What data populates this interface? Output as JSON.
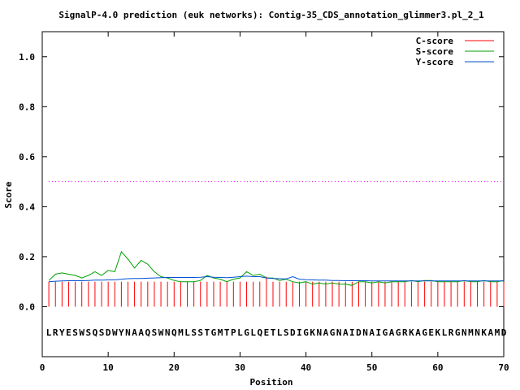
{
  "chart_data": {
    "type": "line",
    "title": "SignalP-4.0 prediction (euk networks): Contig-35_CDS_annotation_glimmer3.pl_2_1",
    "xlabel": "Position",
    "ylabel": "Score",
    "xlim": [
      0,
      70
    ],
    "ylim": [
      -0.2,
      1.1
    ],
    "xticks": [
      0,
      10,
      20,
      30,
      40,
      50,
      60,
      70
    ],
    "yticks": [
      0.0,
      0.2,
      0.4,
      0.6,
      0.8,
      1.0
    ],
    "ytick_labels": [
      "0.0",
      "0.2",
      "0.4",
      "0.6",
      "0.8",
      "1.0"
    ],
    "legend_position": "top-right",
    "threshold": {
      "value": 0.5,
      "color": "#ff00ff",
      "style": "dotted"
    },
    "sequence": "LRYESWSQSDWYNAAQSWNQMLSSTGMTPLGLQETLSDIGKNAGNAIDNAIGAGRKAGEKLRGNMNKAMD",
    "series": [
      {
        "name": "C-score",
        "color": "#ff0000",
        "style": "impulses",
        "values": [
          0.1,
          0.1,
          0.1,
          0.1,
          0.1,
          0.1,
          0.1,
          0.1,
          0.1,
          0.1,
          0.1,
          0.1,
          0.1,
          0.1,
          0.1,
          0.1,
          0.1,
          0.1,
          0.1,
          0.1,
          0.1,
          0.1,
          0.1,
          0.1,
          0.1,
          0.1,
          0.1,
          0.1,
          0.1,
          0.1,
          0.1,
          0.1,
          0.1,
          0.12,
          0.1,
          0.1,
          0.1,
          0.1,
          0.1,
          0.1,
          0.1,
          0.1,
          0.1,
          0.1,
          0.1,
          0.1,
          0.1,
          0.1,
          0.1,
          0.1,
          0.1,
          0.1,
          0.1,
          0.1,
          0.1,
          0.1,
          0.1,
          0.1,
          0.1,
          0.1,
          0.1,
          0.1,
          0.1,
          0.1,
          0.1,
          0.1,
          0.1,
          0.1,
          0.1,
          0.1
        ]
      },
      {
        "name": "S-score",
        "color": "#00a000",
        "style": "line",
        "values": [
          0.105,
          0.13,
          0.135,
          0.13,
          0.125,
          0.115,
          0.125,
          0.14,
          0.125,
          0.145,
          0.14,
          0.22,
          0.19,
          0.155,
          0.185,
          0.17,
          0.14,
          0.12,
          0.115,
          0.105,
          0.1,
          0.1,
          0.1,
          0.105,
          0.125,
          0.115,
          0.11,
          0.1,
          0.11,
          0.115,
          0.14,
          0.125,
          0.13,
          0.115,
          0.115,
          0.105,
          0.11,
          0.1,
          0.095,
          0.1,
          0.09,
          0.095,
          0.09,
          0.095,
          0.09,
          0.09,
          0.085,
          0.1,
          0.1,
          0.095,
          0.1,
          0.095,
          0.1,
          0.1,
          0.1,
          0.105,
          0.1,
          0.105,
          0.105,
          0.1,
          0.1,
          0.1,
          0.1,
          0.105,
          0.1,
          0.1,
          0.105,
          0.1,
          0.1,
          0.105
        ]
      },
      {
        "name": "Y-score",
        "color": "#0050d0",
        "style": "line",
        "values": [
          0.1,
          0.102,
          0.103,
          0.104,
          0.104,
          0.104,
          0.105,
          0.106,
          0.106,
          0.107,
          0.107,
          0.11,
          0.112,
          0.113,
          0.113,
          0.114,
          0.115,
          0.116,
          0.117,
          0.117,
          0.117,
          0.117,
          0.117,
          0.118,
          0.12,
          0.118,
          0.117,
          0.116,
          0.118,
          0.12,
          0.122,
          0.12,
          0.12,
          0.115,
          0.113,
          0.112,
          0.111,
          0.12,
          0.11,
          0.108,
          0.107,
          0.106,
          0.106,
          0.105,
          0.105,
          0.104,
          0.104,
          0.104,
          0.104,
          0.103,
          0.103,
          0.103,
          0.103,
          0.103,
          0.103,
          0.103,
          0.103,
          0.103,
          0.103,
          0.103,
          0.103,
          0.103,
          0.103,
          0.103,
          0.103,
          0.103,
          0.103,
          0.103,
          0.103,
          0.103
        ]
      }
    ]
  }
}
